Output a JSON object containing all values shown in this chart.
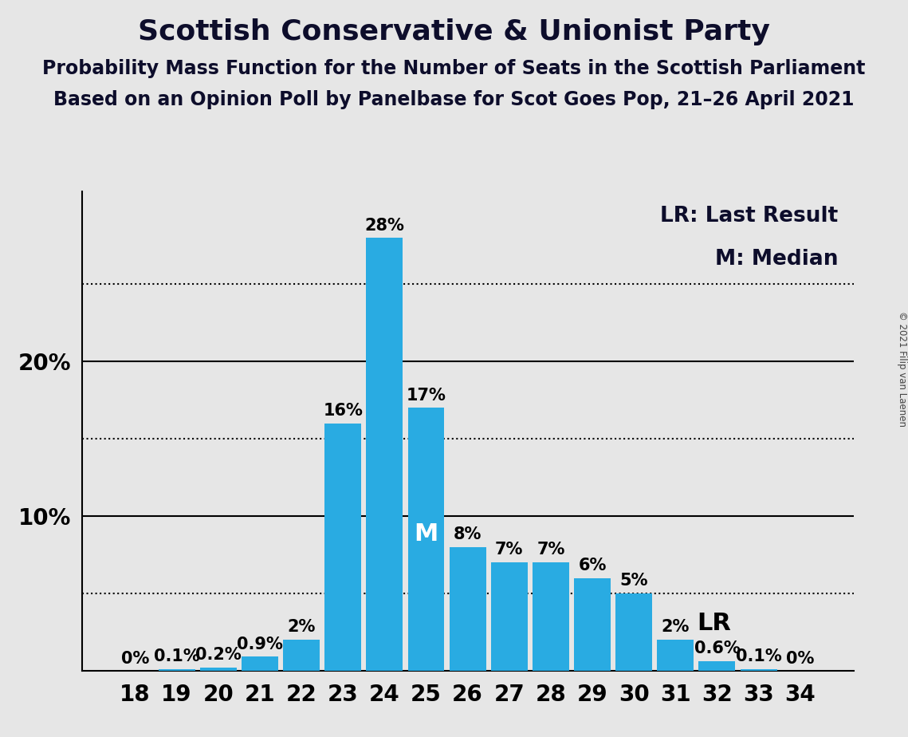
{
  "title": "Scottish Conservative & Unionist Party",
  "subtitle1": "Probability Mass Function for the Number of Seats in the Scottish Parliament",
  "subtitle2": "Based on an Opinion Poll by Panelbase for Scot Goes Pop, 21–26 April 2021",
  "copyright": "© 2021 Filip van Laenen",
  "legend_lr": "LR: Last Result",
  "legend_m": "M: Median",
  "categories": [
    18,
    19,
    20,
    21,
    22,
    23,
    24,
    25,
    26,
    27,
    28,
    29,
    30,
    31,
    32,
    33,
    34
  ],
  "values": [
    0.0,
    0.1,
    0.2,
    0.9,
    2.0,
    16.0,
    28.0,
    17.0,
    8.0,
    7.0,
    7.0,
    6.0,
    5.0,
    2.0,
    0.6,
    0.1,
    0.0
  ],
  "labels": [
    "0%",
    "0.1%",
    "0.2%",
    "0.9%",
    "2%",
    "16%",
    "28%",
    "17%",
    "8%",
    "7%",
    "7%",
    "6%",
    "5%",
    "2%",
    "0.6%",
    "0.1%",
    "0%"
  ],
  "bar_color": "#29abe2",
  "background_color": "#e6e6e6",
  "median_seat": 25,
  "last_result_seat": 31,
  "ylim": [
    0,
    31
  ],
  "ytick_solid": [
    10,
    20
  ],
  "ytick_dotted": [
    5,
    15,
    25
  ],
  "ytick_labels_positions": [
    10,
    20
  ],
  "ytick_labels_text": [
    "10%",
    "20%"
  ],
  "title_fontsize": 26,
  "subtitle_fontsize": 17,
  "tick_fontsize": 20,
  "annotation_fontsize": 15,
  "legend_fontsize": 19
}
